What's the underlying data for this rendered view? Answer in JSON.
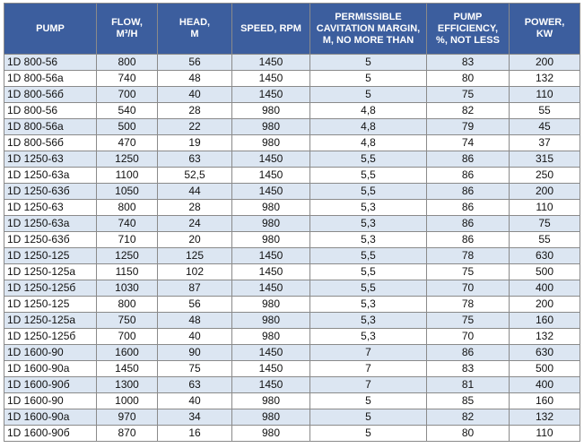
{
  "table": {
    "header": [
      "PUMP",
      "FLOW,\nM³/H",
      "HEAD,\nM",
      "SPEED, RPM",
      "PERMISSIBLE\nCAVITATION MARGIN,\nM, NO MORE THAN",
      "PUMP\nEFFICIENCY,\n%, NOT LESS",
      "POWER,\nKW"
    ],
    "rows": [
      [
        "1D 800-56",
        "800",
        "56",
        "1450",
        "5",
        "83",
        "200"
      ],
      [
        "1D 800-56a",
        "740",
        "48",
        "1450",
        "5",
        "80",
        "132"
      ],
      [
        "1D 800-56б",
        "700",
        "40",
        "1450",
        "5",
        "75",
        "110"
      ],
      [
        "1D 800-56",
        "540",
        "28",
        "980",
        "4,8",
        "82",
        "55"
      ],
      [
        "1D 800-56a",
        "500",
        "22",
        "980",
        "4,8",
        "79",
        "45"
      ],
      [
        "1D 800-56б",
        "470",
        "19",
        "980",
        "4,8",
        "74",
        "37"
      ],
      [
        "1D 1250-63",
        "1250",
        "63",
        "1450",
        "5,5",
        "86",
        "315"
      ],
      [
        "1D 1250-63a",
        "1100",
        "52,5",
        "1450",
        "5,5",
        "86",
        "250"
      ],
      [
        "1D 1250-63б",
        "1050",
        "44",
        "1450",
        "5,5",
        "86",
        "200"
      ],
      [
        "1D 1250-63",
        "800",
        "28",
        "980",
        "5,3",
        "86",
        "110"
      ],
      [
        "1D 1250-63a",
        "740",
        "24",
        "980",
        "5,3",
        "86",
        "75"
      ],
      [
        "1D 1250-63б",
        "710",
        "20",
        "980",
        "5,3",
        "86",
        "55"
      ],
      [
        "1D 1250-125",
        "1250",
        "125",
        "1450",
        "5,5",
        "78",
        "630"
      ],
      [
        "1D 1250-125a",
        "1150",
        "102",
        "1450",
        "5,5",
        "75",
        "500"
      ],
      [
        "1D 1250-125б",
        "1030",
        "87",
        "1450",
        "5,5",
        "70",
        "400"
      ],
      [
        "1D 1250-125",
        "800",
        "56",
        "980",
        "5,3",
        "78",
        "200"
      ],
      [
        "1D 1250-125a",
        "750",
        "48",
        "980",
        "5,3",
        "75",
        "160"
      ],
      [
        "1D 1250-125б",
        "700",
        "40",
        "980",
        "5,3",
        "70",
        "132"
      ],
      [
        "1D 1600-90",
        "1600",
        "90",
        "1450",
        "7",
        "86",
        "630"
      ],
      [
        "1D 1600-90a",
        "1450",
        "75",
        "1450",
        "7",
        "83",
        "500"
      ],
      [
        "1D 1600-90б",
        "1300",
        "63",
        "1450",
        "7",
        "81",
        "400"
      ],
      [
        "1D 1600-90",
        "1000",
        "40",
        "980",
        "5",
        "85",
        "160"
      ],
      [
        "1D 1600-90a",
        "970",
        "34",
        "980",
        "5",
        "82",
        "132"
      ],
      [
        "1D 1600-90б",
        "870",
        "16",
        "980",
        "5",
        "80",
        "110"
      ]
    ]
  }
}
